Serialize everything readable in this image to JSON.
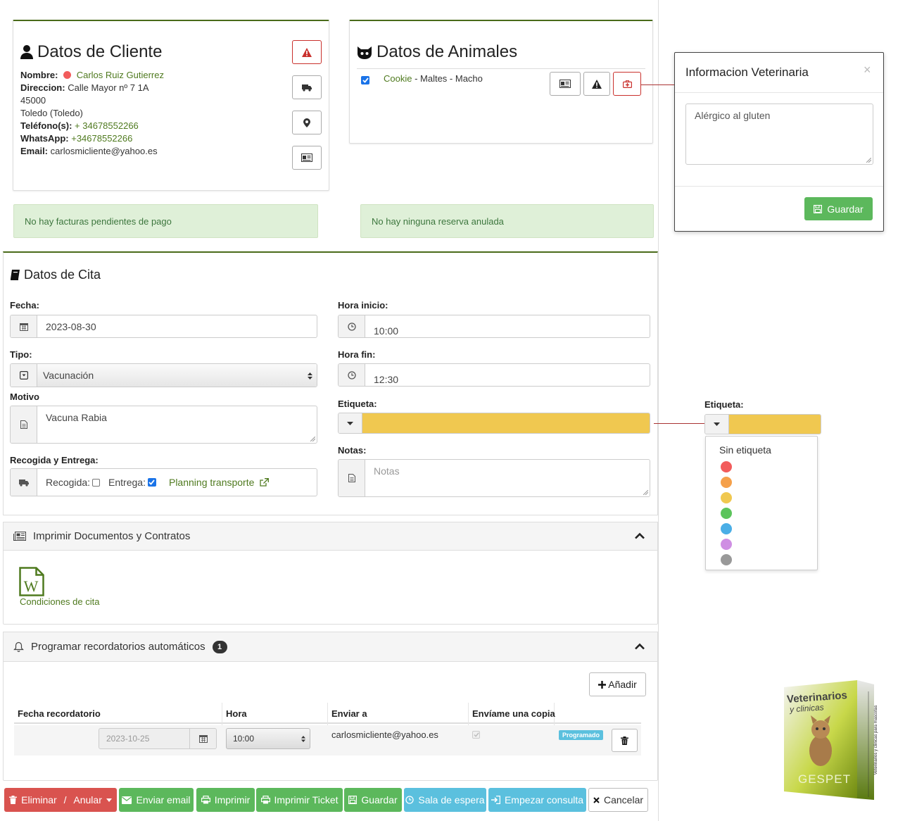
{
  "cliente": {
    "title": "Datos de Cliente",
    "nombre_label": "Nombre:",
    "nombre": "Carlos Ruiz Gutierrez",
    "direccion_label": "Direccion:",
    "direccion": "Calle Mayor nº 7 1A",
    "cp": "45000",
    "ciudad": "Toledo (Toledo)",
    "telefono_label": "Teléfono(s):",
    "telefono": "+ 34678552266",
    "whatsapp_label": "WhatsApp:",
    "whatsapp": "+34678552266",
    "email_label": "Email:",
    "email": "carlosmicliente@yahoo.es"
  },
  "animales": {
    "title": "Datos de Animales",
    "pet_name": "Cookie",
    "pet_desc": " - Maltes - Macho"
  },
  "alerts": {
    "facturas": "No hay facturas pendientes de pago",
    "reservas": "No hay ninguna reserva anulada"
  },
  "vet_modal": {
    "title": "Informacion Veterinaria",
    "close": "×",
    "text": "Alérgico al gluten",
    "save": "Guardar"
  },
  "cita": {
    "title": "Datos de Cita",
    "fecha_label": "Fecha:",
    "fecha": "2023-08-30",
    "hora_inicio_label": "Hora inicio:",
    "hora_inicio": "10:00",
    "tipo_label": "Tipo:",
    "tipo": "Vacunación",
    "hora_fin_label": "Hora fin:",
    "hora_fin": "12:30",
    "motivo_label": "Motivo",
    "motivo": "Vacuna Rabia",
    "etiqueta_label": "Etiqueta:",
    "notas_label": "Notas:",
    "notas_placeholder": "Notas",
    "recogida_label": "Recogida y Entrega:",
    "recogida": "Recogida:",
    "entrega": "Entrega:",
    "planning": "Planning transporte",
    "etiqueta_color": "#f0c850"
  },
  "etiqueta_dropdown": {
    "label": "Etiqueta:",
    "none": "Sin etiqueta",
    "colors": [
      "#f25c5c",
      "#f5a04a",
      "#f0c850",
      "#5cc45c",
      "#4aaee6",
      "#cf8fe3",
      "#999999"
    ]
  },
  "docs": {
    "title": "Imprimir Documentos y Contratos",
    "doc_name": "Condiciones de cita"
  },
  "reminders": {
    "title": "Programar recordatorios automáticos",
    "count": "1",
    "add": "Añadir",
    "headers": [
      "Fecha recordatorio",
      "Hora",
      "Enviar a",
      "Envíame una copia"
    ],
    "row": {
      "fecha": "2023-10-25",
      "hora": "10:00",
      "email": "carlosmicliente@yahoo.es",
      "status": "Programado"
    }
  },
  "actions": {
    "eliminar": "Eliminar",
    "anular": "Anular",
    "email": "Enviar email",
    "imprimir": "Imprimir",
    "ticket": "Imprimir Ticket",
    "guardar": "Guardar",
    "sala": "Sala de espera",
    "consulta": "Empezar consulta",
    "cancelar": "Cancelar"
  },
  "product": {
    "line1": "Veterinarios",
    "line2": "y clinicas",
    "brand": "GESPET",
    "side": "Veterinarios y clinicas para mascotas"
  },
  "colors": {
    "accent_green": "#4f7a1f",
    "danger": "#d9534f",
    "success": "#5cb85c",
    "info": "#5bc0de"
  }
}
